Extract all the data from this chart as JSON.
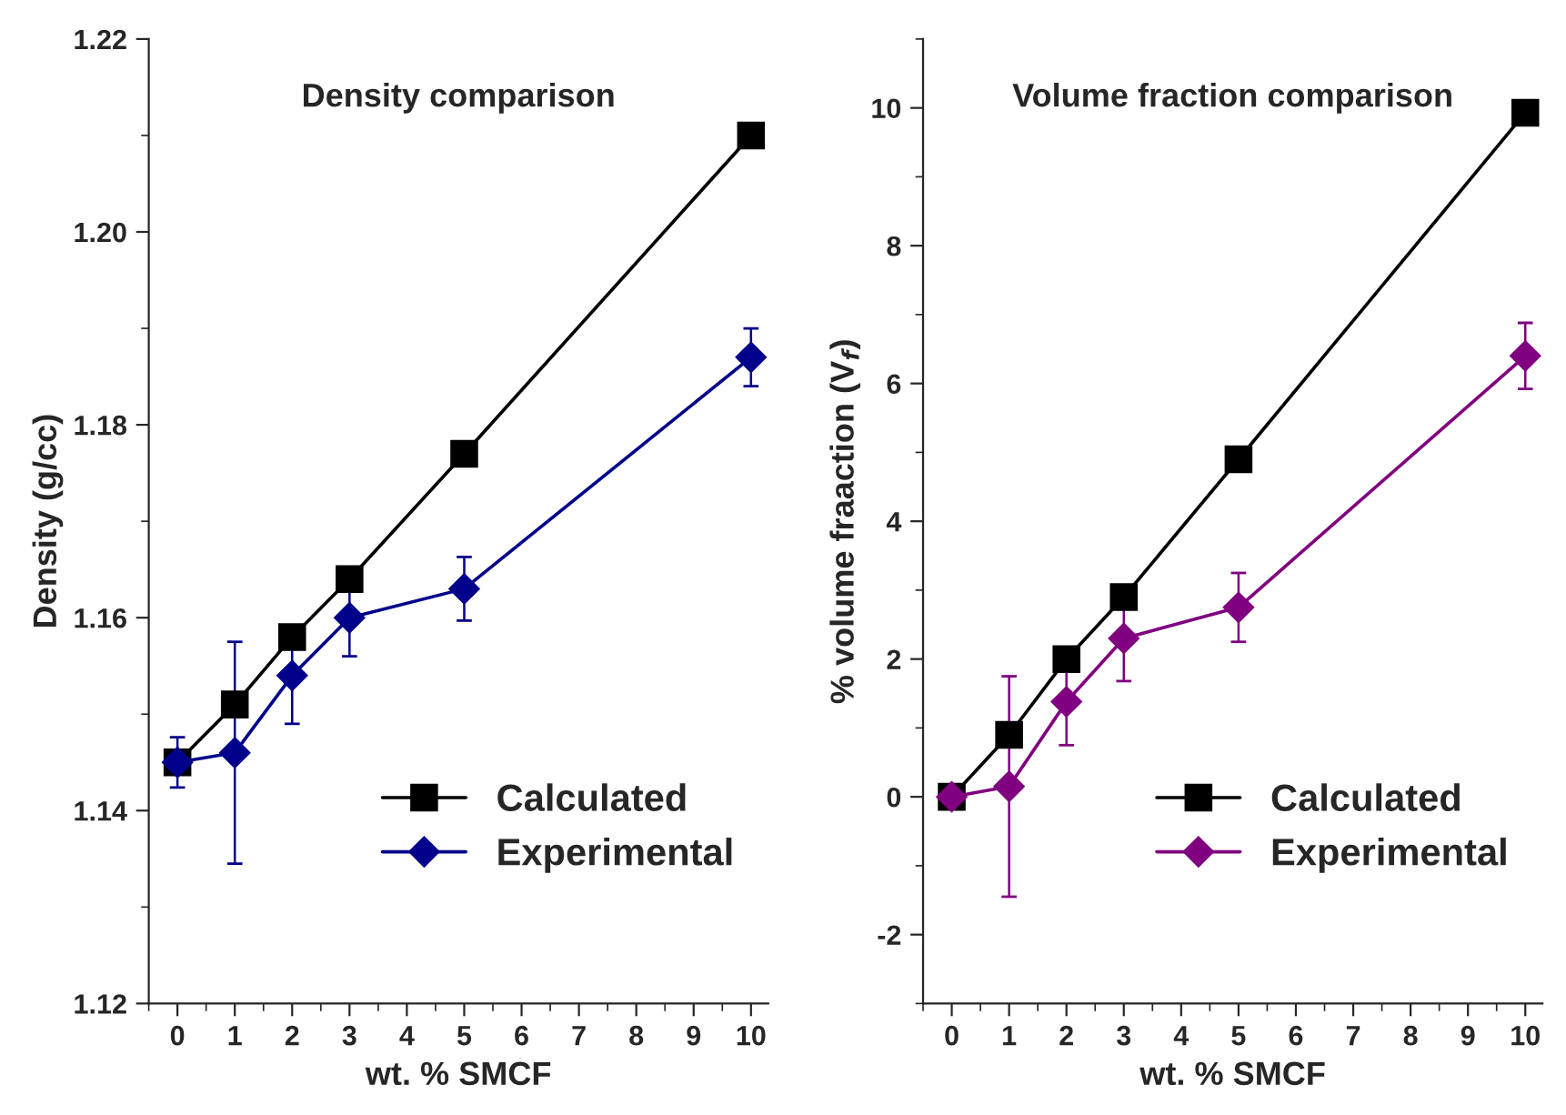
{
  "chart_data": [
    {
      "type": "line",
      "title": "Density comparison",
      "xlabel": "wt. % SMCF",
      "ylabel": "Density (g/cc)",
      "x": [
        0,
        1,
        2,
        3,
        5,
        10
      ],
      "xlim": [
        -0.5,
        10.3
      ],
      "xticks": [
        0,
        1,
        2,
        3,
        4,
        5,
        6,
        7,
        8,
        9,
        10
      ],
      "ylim": [
        1.12,
        1.22
      ],
      "yticks": [
        {
          "value": 1.12,
          "label": "1.12"
        },
        {
          "value": 1.14,
          "label": "1.14"
        },
        {
          "value": 1.16,
          "label": "1.16"
        },
        {
          "value": 1.18,
          "label": "1.18"
        },
        {
          "value": 1.2,
          "label": "1.20"
        },
        {
          "value": 1.22,
          "label": "1.22"
        }
      ],
      "legend": "bottom right",
      "grid": false,
      "series": [
        {
          "name": "Calculated",
          "color": "#000000",
          "marker": "square",
          "values": [
            1.145,
            1.151,
            1.158,
            1.164,
            1.177,
            1.21
          ]
        },
        {
          "name": "Experimental",
          "color": "#00008b",
          "marker": "diamond",
          "values": [
            1.145,
            1.146,
            1.154,
            1.16,
            1.163,
            1.187
          ],
          "errors": [
            0.0026,
            0.0115,
            0.005,
            0.004,
            0.0033,
            0.003
          ]
        }
      ]
    },
    {
      "type": "line",
      "title": "Volume fraction comparison",
      "xlabel": "wt. % SMCF",
      "ylabel": "% volume fraaction (V$_{f}$)",
      "x": [
        0,
        1,
        2,
        3,
        5,
        10
      ],
      "xlim": [
        -0.5,
        10.3
      ],
      "xticks": [
        0,
        1,
        2,
        3,
        4,
        5,
        6,
        7,
        8,
        9,
        10
      ],
      "ylim": [
        -3,
        11
      ],
      "yticks": [
        -2,
        0,
        2,
        4,
        6,
        8,
        10
      ],
      "legend": "bottom right",
      "grid": false,
      "series": [
        {
          "name": "Calculated",
          "color": "#000000",
          "marker": "square",
          "values": [
            0,
            0.9,
            2.0,
            2.9,
            4.9,
            9.93
          ]
        },
        {
          "name": "Experimental",
          "color": "#800080",
          "marker": "diamond",
          "values": [
            0,
            0.15,
            1.38,
            2.3,
            2.75,
            6.4
          ],
          "errors": [
            null,
            1.6,
            0.63,
            0.62,
            0.5,
            0.48
          ]
        }
      ]
    }
  ]
}
